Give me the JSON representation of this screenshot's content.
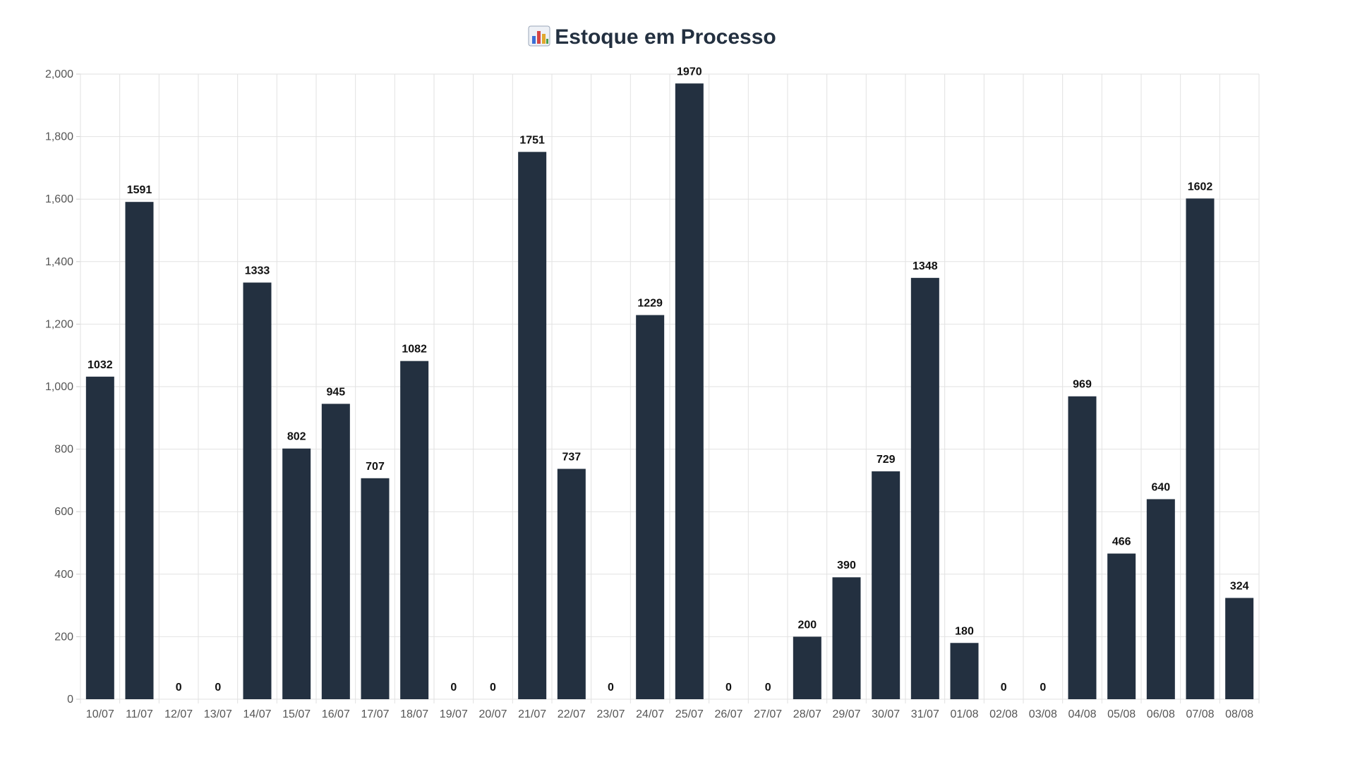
{
  "chart_data": {
    "type": "bar",
    "title": "Estoque em Processo",
    "title_icon": "bar-chart-icon",
    "xlabel": "",
    "ylabel": "",
    "ylim": [
      0,
      2000
    ],
    "yticks": [
      0,
      200,
      400,
      600,
      800,
      1000,
      1200,
      1400,
      1600,
      1800,
      2000
    ],
    "ytick_labels": [
      "0",
      "200",
      "400",
      "600",
      "800",
      "1,000",
      "1,200",
      "1,400",
      "1,600",
      "1,800",
      "2,000"
    ],
    "grid": true,
    "legend": "none",
    "bar_color": "#233040",
    "categories": [
      "10/07",
      "11/07",
      "12/07",
      "13/07",
      "14/07",
      "15/07",
      "16/07",
      "17/07",
      "18/07",
      "19/07",
      "20/07",
      "21/07",
      "22/07",
      "23/07",
      "24/07",
      "25/07",
      "26/07",
      "27/07",
      "28/07",
      "29/07",
      "30/07",
      "31/07",
      "01/08",
      "02/08",
      "03/08",
      "04/08",
      "05/08",
      "06/08",
      "07/08",
      "08/08"
    ],
    "values": [
      1032,
      1591,
      0,
      0,
      1333,
      802,
      945,
      707,
      1082,
      0,
      0,
      1751,
      737,
      0,
      1229,
      1970,
      0,
      0,
      200,
      390,
      729,
      1348,
      180,
      0,
      0,
      969,
      466,
      640,
      1602,
      324
    ]
  }
}
